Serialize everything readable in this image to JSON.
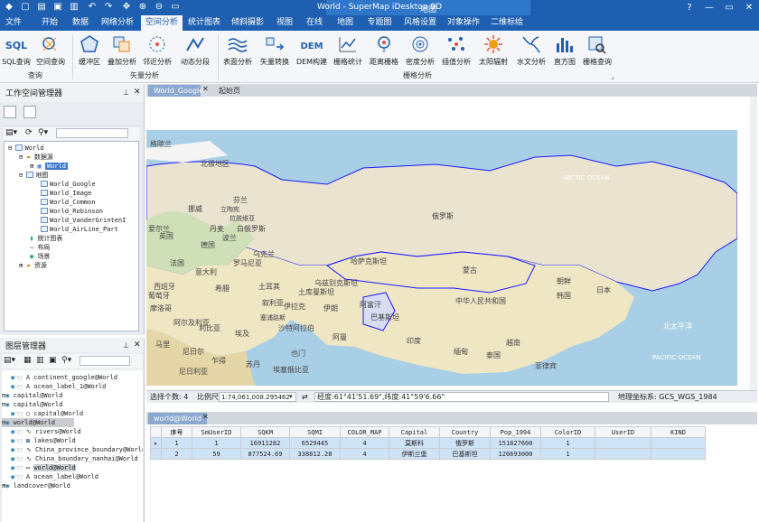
{
  "titlebar": {
    "title": "World - SuperMap iDesktop 9D",
    "context_tab": "地图"
  },
  "menu": {
    "items": [
      "文件",
      "开始",
      "数据",
      "网络分析",
      "空间分析",
      "统计图表",
      "倾斜摄影",
      "视图",
      "在线",
      "地图",
      "专题图",
      "风格设置",
      "对象操作",
      "二维标绘"
    ],
    "active": "空间分析"
  },
  "ribbon": {
    "groups": [
      {
        "label": "查询",
        "buttons": [
          "SQL查询",
          "空间查询"
        ]
      },
      {
        "label": "矢量分析",
        "buttons": [
          "缓冲区",
          "叠加分析",
          "邻近分析",
          "动态分段"
        ]
      },
      {
        "label": "栅格分析",
        "buttons": [
          "表面分析",
          "矢量转换",
          "DEM构建",
          "栅格统计",
          "距离栅格",
          "密度分析",
          "插值分析",
          "太阳辐射",
          "水文分析",
          "直方图",
          "栅格查询"
        ]
      }
    ],
    "icon_texts": {
      "sql": "SQL",
      "dem": "DEM"
    }
  },
  "workspace_panel": {
    "title": "工作空间管理器",
    "tree": {
      "root": "World",
      "datasources": "数据源",
      "datasource_world": "World",
      "maps": "地图",
      "map_items": [
        "World_Google",
        "World_Image",
        "World_Common",
        "World_Robinson",
        "World_VanderGrintenI",
        "World_AirLine_Part"
      ],
      "charts": "统计图表",
      "layouts": "布局",
      "scenes": "场景",
      "resources": "资源"
    }
  },
  "layer_panel": {
    "title": "图层管理器",
    "layers": [
      "continent_google@World",
      "ocean_label_1@World",
      "capital@World",
      "capital@World",
      "capital@World",
      "world@World",
      "rivers@World",
      "lakes@World",
      "China_province_boundary@World",
      "China_boundary_nanhai@World",
      "world@World",
      "ocean_label@World",
      "landcover@World"
    ]
  },
  "document": {
    "tabs": [
      "World_Google",
      "起始页"
    ],
    "map_labels": [
      "北极地区",
      "ARCTIC OCEAN",
      "格陵兰",
      "挪威",
      "芬兰",
      "丹麦",
      "英国",
      "爱尔兰",
      "法国",
      "西班牙",
      "葡萄牙",
      "摩洛哥",
      "阿尔及利亚",
      "利比亚",
      "埃及",
      "苏丹",
      "马里",
      "尼日尔",
      "乍得",
      "尼日利亚",
      "德国",
      "波兰",
      "白俄罗斯",
      "乌克兰",
      "罗马尼亚",
      "意大利",
      "希腊",
      "土耳其",
      "叙利亚",
      "伊拉克",
      "伊朗",
      "沙特阿拉伯",
      "阿曼",
      "也门",
      "埃塞俄比亚",
      "俄罗斯",
      "哈萨克斯坦",
      "乌兹别克斯坦",
      "土库曼斯坦",
      "阿富汗",
      "巴基斯坦",
      "印度",
      "蒙古",
      "中华人民共和国",
      "朝鲜",
      "韩国",
      "日本",
      "缅甸",
      "泰国",
      "越南",
      "菲律宾",
      "北太平洋",
      "PACIFIC OCEAN",
      "立陶宛",
      "拉脱维亚",
      "塞浦路斯"
    ],
    "status": {
      "selected_label": "选择个数: 4",
      "scale_label": "比例尺:",
      "scale_value": "1:74,061,008.295462",
      "coords": "经度:61°41'51.69\",纬度:41°59'6.66\"",
      "crs": "地理坐标系: GCS_WGS_1984"
    }
  },
  "attribute": {
    "tab": "world@World",
    "columns": [
      "序号",
      "SmUserID",
      "SQKM",
      "SQMI",
      "COLOR_MAP",
      "Capital",
      "Country",
      "Pop_1994",
      "ColorID",
      "UserID",
      "KIND"
    ],
    "rows": [
      [
        "1",
        "1",
        "16911282",
        "6529445",
        "4",
        "莫斯科",
        "俄罗斯",
        "151827600",
        "1",
        "",
        ""
      ],
      [
        "2",
        "59",
        "877524.69",
        "338812.28",
        "4",
        "伊斯兰堡",
        "巴基斯坦",
        "126693000",
        "1",
        "",
        ""
      ]
    ]
  },
  "colors": {
    "accent": "#1e5fb1",
    "selection": "#3b79d0",
    "boundary": "#1a1aff"
  }
}
